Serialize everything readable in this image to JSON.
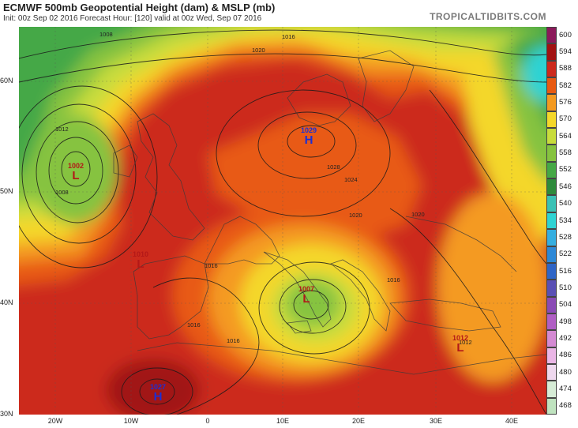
{
  "header": {
    "title": "ECMWF 500mb Geopotential Height (dam) & MSLP (mb)",
    "subtitle": "Init: 00z Sep 02 2016   Forecast Hour: [120]   valid at 00z Wed, Sep 07 2016",
    "brand": "TROPICALTIDBITS.COM"
  },
  "lat_labels": [
    "60N",
    "50N",
    "40N",
    "30N"
  ],
  "lon_labels": [
    "20W",
    "10W",
    "0",
    "10E",
    "20E",
    "30E",
    "40E"
  ],
  "legend": {
    "levels": [
      "600",
      "594",
      "588",
      "582",
      "576",
      "570",
      "564",
      "558",
      "552",
      "546",
      "540",
      "534",
      "528",
      "522",
      "516",
      "510",
      "504",
      "498",
      "492",
      "486",
      "480",
      "474",
      "468"
    ],
    "colors": [
      "#8b1a5a",
      "#a11212",
      "#cc2a1d",
      "#e85a12",
      "#f49a20",
      "#f4d72a",
      "#c8dc3c",
      "#86c33f",
      "#45a846",
      "#2e8a3c",
      "#3ac1b5",
      "#2fd3d3",
      "#35aee0",
      "#2d88d6",
      "#2f65c6",
      "#5a50b5",
      "#8a4bb5",
      "#b05fc4",
      "#d48ad3",
      "#eab6e6",
      "#eed8ee",
      "#d6ecd6",
      "#bfe3bf"
    ]
  },
  "pressure_centres": [
    {
      "type": "low",
      "value": "1002",
      "symbol": "L"
    },
    {
      "type": "high",
      "value": "1029",
      "symbol": "H"
    },
    {
      "type": "low",
      "value": "1010",
      "symbol": "L"
    },
    {
      "type": "low",
      "value": "1007",
      "symbol": "L"
    },
    {
      "type": "high",
      "value": "1027",
      "symbol": "H"
    },
    {
      "type": "low",
      "value": "1012",
      "symbol": "L"
    }
  ],
  "isobar_labels": [
    "1008",
    "1020",
    "1016",
    "1012",
    "1008",
    "1028",
    "1024",
    "1020",
    "1016",
    "1020",
    "1016",
    "1016",
    "1016",
    "1012"
  ]
}
